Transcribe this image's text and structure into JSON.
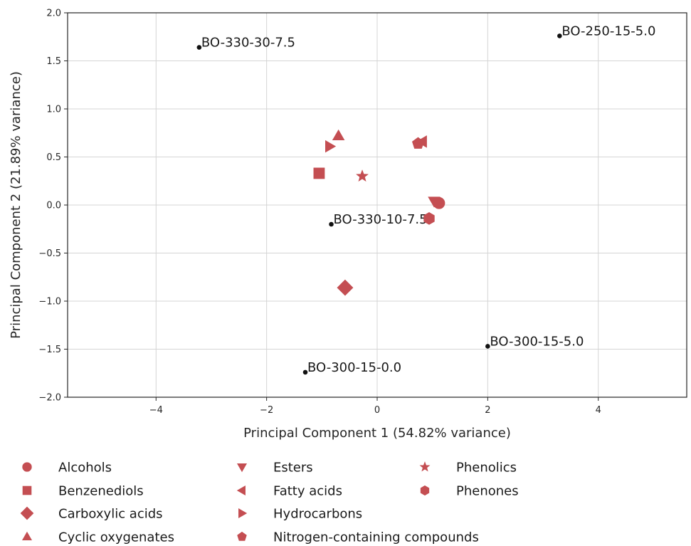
{
  "chart_data": {
    "type": "scatter",
    "xlabel": "Principal Component 1 (54.82% variance)",
    "ylabel": "Principal Component 2 (21.89% variance)",
    "xlim": [
      -5.6,
      5.6
    ],
    "ylim": [
      -2.0,
      2.0
    ],
    "xticks": [
      -4,
      -2,
      0,
      2,
      4
    ],
    "yticks": [
      -2.0,
      -1.5,
      -1.0,
      -0.5,
      0.0,
      0.5,
      1.0,
      1.5,
      2.0
    ],
    "xtick_labels": [
      "−4",
      "−2",
      "0",
      "2",
      "4"
    ],
    "ytick_labels": [
      "−2.0",
      "−1.5",
      "−1.0",
      "−0.5",
      "0.0",
      "0.5",
      "1.0",
      "1.5",
      "2.0"
    ],
    "grid": true,
    "legend_position": "bottom",
    "marker_color": "#c44e52",
    "sample_color": "#111111",
    "samples": [
      {
        "label": "BO-330-30-7.5",
        "x": -3.22,
        "y": 1.64
      },
      {
        "label": "BO-250-15-5.0",
        "x": 3.3,
        "y": 1.76
      },
      {
        "label": "BO-330-10-7.5",
        "x": -0.83,
        "y": -0.2
      },
      {
        "label": "BO-300-15-5.0",
        "x": 2.0,
        "y": -1.47
      },
      {
        "label": "BO-300-15-0.0",
        "x": -1.3,
        "y": -1.74
      }
    ],
    "series": [
      {
        "name": "Alcohols",
        "marker": "circle",
        "x": 1.12,
        "y": 0.02
      },
      {
        "name": "Benzenediols",
        "marker": "square",
        "x": -1.05,
        "y": 0.33
      },
      {
        "name": "Carboxylic acids",
        "marker": "diamond",
        "x": -0.58,
        "y": -0.86
      },
      {
        "name": "Cyclic oxygenates",
        "marker": "triangle-up",
        "x": -0.7,
        "y": 0.72
      },
      {
        "name": "Esters",
        "marker": "triangle-down",
        "x": 1.03,
        "y": 0.04
      },
      {
        "name": "Fatty acids",
        "marker": "triangle-left",
        "x": 0.82,
        "y": 0.66
      },
      {
        "name": "Hydrocarbons",
        "marker": "triangle-right",
        "x": -0.86,
        "y": 0.61
      },
      {
        "name": "Nitrogen-containing compounds",
        "marker": "pentagon",
        "x": 0.74,
        "y": 0.64
      },
      {
        "name": "Phenolics",
        "marker": "star",
        "x": -0.27,
        "y": 0.3
      },
      {
        "name": "Phenones",
        "marker": "hexagon",
        "x": 0.94,
        "y": -0.14
      }
    ]
  }
}
